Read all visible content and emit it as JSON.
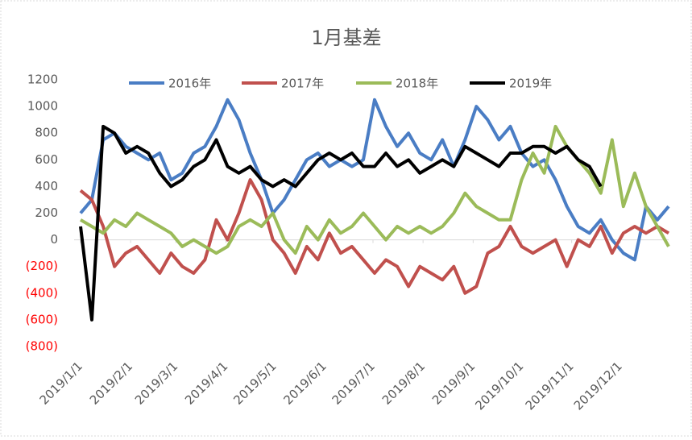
{
  "chart_data": {
    "type": "line",
    "title": "1月基差",
    "x": [
      "2019/1/1",
      "2019/1/8",
      "2019/1/15",
      "2019/1/22",
      "2019/1/29",
      "2019/2/5",
      "2019/2/12",
      "2019/2/19",
      "2019/2/26",
      "2019/3/5",
      "2019/3/12",
      "2019/3/19",
      "2019/3/26",
      "2019/4/2",
      "2019/4/9",
      "2019/4/16",
      "2019/4/23",
      "2019/4/30",
      "2019/5/7",
      "2019/5/14",
      "2019/5/21",
      "2019/5/28",
      "2019/6/4",
      "2019/6/11",
      "2019/6/18",
      "2019/6/25",
      "2019/7/2",
      "2019/7/9",
      "2019/7/16",
      "2019/7/23",
      "2019/7/30",
      "2019/8/6",
      "2019/8/13",
      "2019/8/20",
      "2019/8/27",
      "2019/9/3",
      "2019/9/10",
      "2019/9/17",
      "2019/9/24",
      "2019/10/1",
      "2019/10/8",
      "2019/10/15",
      "2019/10/22",
      "2019/10/29",
      "2019/11/5",
      "2019/11/12",
      "2019/11/19",
      "2019/11/26",
      "2019/12/3",
      "2019/12/10",
      "2019/12/17",
      "2019/12/24",
      "2019/12/31"
    ],
    "series": [
      {
        "name": "2016年",
        "color": "#4a7dc4",
        "values": [
          200,
          300,
          750,
          800,
          700,
          650,
          600,
          650,
          450,
          500,
          650,
          700,
          850,
          1050,
          900,
          650,
          450,
          200,
          300,
          450,
          600,
          650,
          550,
          600,
          550,
          600,
          1050,
          850,
          700,
          800,
          650,
          600,
          750,
          550,
          750,
          1000,
          900,
          750,
          850,
          650,
          550,
          600,
          450,
          250,
          100,
          50,
          150,
          0,
          -100,
          -150,
          250,
          150,
          250
        ]
      },
      {
        "name": "2017年",
        "color": "#c0504d",
        "values": [
          370,
          300,
          100,
          -200,
          -100,
          -50,
          -150,
          -250,
          -100,
          -200,
          -250,
          -150,
          150,
          0,
          200,
          450,
          300,
          0,
          -100,
          -250,
          -50,
          -150,
          50,
          -100,
          -50,
          -150,
          -250,
          -150,
          -200,
          -350,
          -200,
          -250,
          -300,
          -200,
          -400,
          -350,
          -100,
          -50,
          100,
          -50,
          -100,
          -50,
          0,
          -200,
          0,
          -50,
          100,
          -100,
          50,
          100,
          50,
          100,
          50
        ]
      },
      {
        "name": "2018年",
        "color": "#9bbb59",
        "values": [
          150,
          100,
          50,
          150,
          100,
          200,
          150,
          100,
          50,
          -50,
          0,
          -50,
          -100,
          -50,
          100,
          150,
          100,
          200,
          0,
          -100,
          100,
          0,
          150,
          50,
          100,
          200,
          100,
          0,
          100,
          50,
          100,
          50,
          100,
          200,
          350,
          250,
          200,
          150,
          150,
          450,
          650,
          500,
          850,
          700,
          600,
          500,
          350,
          750,
          250,
          500,
          250,
          100,
          -50
        ]
      },
      {
        "name": "2019年",
        "color": "#000000",
        "values": [
          100,
          -600,
          850,
          800,
          650,
          700,
          650,
          500,
          400,
          450,
          550,
          600,
          750,
          550,
          500,
          550,
          450,
          400,
          450,
          400,
          500,
          600,
          650,
          600,
          650,
          550,
          550,
          650,
          550,
          600,
          500,
          550,
          600,
          550,
          700,
          650,
          600,
          550,
          650,
          650,
          700,
          700,
          650,
          700,
          600,
          550,
          400,
          null,
          null,
          null,
          null,
          null,
          null
        ]
      }
    ],
    "xlim": [
      "2019/1/1",
      "2019/12/31"
    ],
    "xticks": [
      "2019/1/1",
      "2019/2/1",
      "2019/3/1",
      "2019/4/1",
      "2019/5/1",
      "2019/6/1",
      "2019/7/1",
      "2019/8/1",
      "2019/9/1",
      "2019/10/1",
      "2019/11/1",
      "2019/12/1"
    ],
    "ylim": [
      -800,
      1200
    ],
    "yticks": [
      1200,
      1000,
      800,
      600,
      400,
      200,
      0,
      {
        "value": -200,
        "label": "(200)"
      },
      {
        "value": -400,
        "label": "(400)"
      },
      {
        "value": -600,
        "label": "(600)"
      },
      {
        "value": -800,
        "label": "(800)"
      }
    ],
    "negative_tick_color": "#ff0000",
    "legend": "top"
  }
}
